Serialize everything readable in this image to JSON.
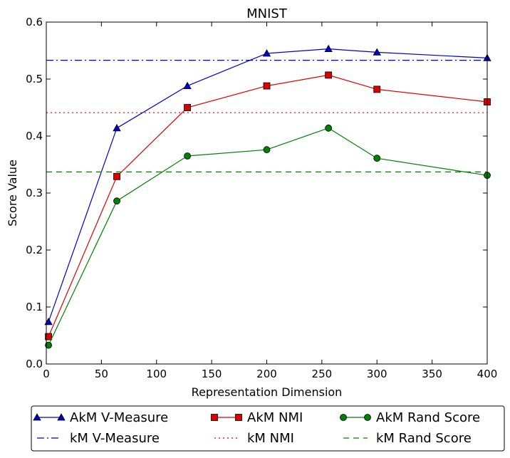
{
  "chart_data": {
    "type": "line",
    "title": "MNIST",
    "xlabel": "Representation Dimension",
    "ylabel": "Score Value",
    "xlim": [
      0,
      400
    ],
    "ylim": [
      0,
      0.6
    ],
    "xticks": [
      0,
      50,
      100,
      150,
      200,
      250,
      300,
      350,
      400
    ],
    "yticks": [
      0.0,
      0.1,
      0.2,
      0.3,
      0.4,
      0.5,
      0.6
    ],
    "xtick_labels": [
      "0",
      "50",
      "100",
      "150",
      "200",
      "250",
      "300",
      "350",
      "400"
    ],
    "ytick_labels": [
      "0.0",
      "0.1",
      "0.2",
      "0.3",
      "0.4",
      "0.5",
      "0.6"
    ],
    "grid": false,
    "legend_position": "bottom-outside",
    "series": [
      {
        "name": "AkM V-Measure",
        "color": "#0000cc",
        "marker": "triangle",
        "linestyle": "solid",
        "x": [
          2,
          64,
          128,
          200,
          256,
          300,
          400
        ],
        "y": [
          0.074,
          0.414,
          0.488,
          0.545,
          0.553,
          0.547,
          0.537
        ]
      },
      {
        "name": "AkM NMI",
        "color": "#dd0000",
        "marker": "square",
        "linestyle": "solid",
        "x": [
          2,
          64,
          128,
          200,
          256,
          300,
          400
        ],
        "y": [
          0.048,
          0.329,
          0.45,
          0.488,
          0.507,
          0.482,
          0.46
        ]
      },
      {
        "name": "AkM Rand Score",
        "color": "#007f00",
        "marker": "circle",
        "linestyle": "solid",
        "x": [
          2,
          64,
          128,
          200,
          256,
          300,
          400
        ],
        "y": [
          0.033,
          0.286,
          0.365,
          0.376,
          0.414,
          0.361,
          0.331
        ]
      },
      {
        "name": "kM V-Measure",
        "color": "#0000cc",
        "marker": "none",
        "linestyle": "dashdot",
        "x": [
          0,
          400
        ],
        "y": [
          0.533,
          0.533
        ]
      },
      {
        "name": "kM NMI",
        "color": "#dd0000",
        "marker": "none",
        "linestyle": "dotted",
        "x": [
          0,
          400
        ],
        "y": [
          0.441,
          0.441
        ]
      },
      {
        "name": "kM Rand Score",
        "color": "#007f00",
        "marker": "none",
        "linestyle": "dashed",
        "x": [
          0,
          400
        ],
        "y": [
          0.337,
          0.337
        ]
      }
    ],
    "legend_order": [
      0,
      3,
      1,
      4,
      2,
      5
    ]
  }
}
